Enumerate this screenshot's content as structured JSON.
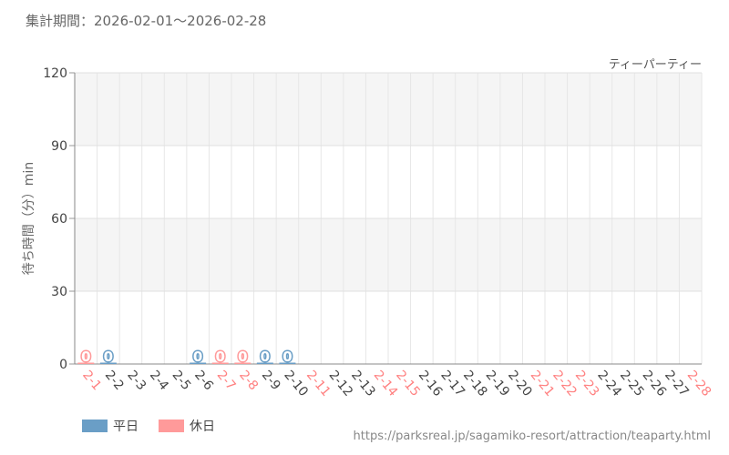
{
  "header": {
    "period_label": "集計期間：2026-02-01～2026-02-28",
    "attraction_name": "ティーパーティー"
  },
  "legend": {
    "weekday_label": "平日",
    "holiday_label": "休日"
  },
  "source_url": "https://parksreal.jp/sagamiko-resort/attraction/teaparty.html",
  "colors": {
    "weekday": "#6a9ec6",
    "holiday": "#ff9a9a",
    "weekday_tick": "#444444",
    "holiday_tick": "#ff8080"
  },
  "chart_data": {
    "type": "bar",
    "ylabel": "待ち時間（分）min",
    "ylim": [
      0,
      120
    ],
    "yticks": [
      0,
      30,
      60,
      90,
      120
    ],
    "grid": true,
    "legend_position": "bottom-left",
    "categories": [
      "2-1",
      "2-2",
      "2-3",
      "2-4",
      "2-5",
      "2-6",
      "2-7",
      "2-8",
      "2-9",
      "2-10",
      "2-11",
      "2-12",
      "2-13",
      "2-14",
      "2-15",
      "2-16",
      "2-17",
      "2-18",
      "2-19",
      "2-20",
      "2-21",
      "2-22",
      "2-23",
      "2-24",
      "2-25",
      "2-26",
      "2-27",
      "2-28"
    ],
    "day_types": [
      "holiday",
      "weekday",
      "weekday",
      "weekday",
      "weekday",
      "weekday",
      "holiday",
      "holiday",
      "weekday",
      "weekday",
      "holiday",
      "weekday",
      "weekday",
      "holiday",
      "holiday",
      "weekday",
      "weekday",
      "weekday",
      "weekday",
      "weekday",
      "holiday",
      "holiday",
      "holiday",
      "weekday",
      "weekday",
      "weekday",
      "weekday",
      "holiday"
    ],
    "values": [
      0,
      0,
      null,
      null,
      null,
      0,
      0,
      0,
      0,
      0,
      null,
      null,
      null,
      null,
      null,
      null,
      null,
      null,
      null,
      null,
      null,
      null,
      null,
      null,
      null,
      null,
      null,
      null
    ],
    "data_labels": [
      "0",
      "0",
      "",
      "",
      "",
      "0",
      "0",
      "0",
      "0",
      "0",
      "",
      "",
      "",
      "",
      "",
      "",
      "",
      "",
      "",
      "",
      "",
      "",
      "",
      "",
      "",
      "",
      "",
      ""
    ]
  }
}
